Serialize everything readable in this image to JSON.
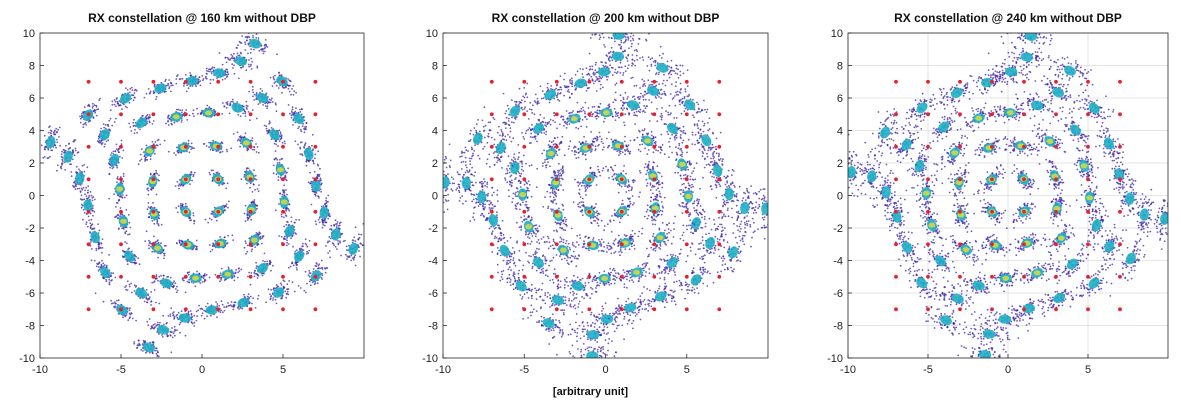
{
  "figure": {
    "shared_xlabel": "[arbitrary unit]"
  },
  "chart_data": [
    {
      "type": "scatter",
      "title": "RX constellation @ 160 km without DBP",
      "xlim": [
        -10,
        10
      ],
      "ylim": [
        -10,
        10
      ],
      "xticks": [
        -10,
        -5,
        0,
        5
      ],
      "yticks": [
        -10,
        -8,
        -6,
        -4,
        -2,
        0,
        2,
        4,
        6,
        8,
        10
      ],
      "grid": false,
      "ideal_points": "64-QAM, coordinates at ±1, ±3, ±5, ±7 on both axes (red markers)",
      "spread": 0.22,
      "phase_rotation": 0.07
    },
    {
      "type": "scatter",
      "title": "RX constellation @ 200 km without DBP",
      "xlim": [
        -10,
        10
      ],
      "ylim": [
        -10,
        10
      ],
      "xticks": [
        -10,
        -5,
        0,
        5
      ],
      "yticks": [
        -10,
        -8,
        -6,
        -4,
        -2,
        0,
        2,
        4,
        6,
        8,
        10
      ],
      "grid": false,
      "ideal_points": "64-QAM, coordinates at ±1, ±3, ±5, ±7 on both axes (red markers)",
      "spread": 0.36,
      "phase_rotation": 0.11
    },
    {
      "type": "scatter",
      "title": "RX constellation @ 240 km without DBP",
      "xlim": [
        -10,
        10
      ],
      "ylim": [
        -10,
        10
      ],
      "xticks": [
        -10,
        -5,
        0,
        5
      ],
      "yticks": [
        -10,
        -8,
        -6,
        -4,
        -2,
        0,
        2,
        4,
        6,
        8,
        10
      ],
      "grid": true,
      "ideal_points": "64-QAM, coordinates at ±1, ±3, ±5, ±7 on both axes (red markers)",
      "spread": 0.33,
      "phase_rotation": 0.1
    }
  ],
  "colors": {
    "ideal_marker": "#e8202a",
    "density_low": "#3e26a8",
    "density_mid": "#1fb0c4",
    "density_high": "#f5e02a",
    "axis": "#262626",
    "grid": "#dedede"
  }
}
